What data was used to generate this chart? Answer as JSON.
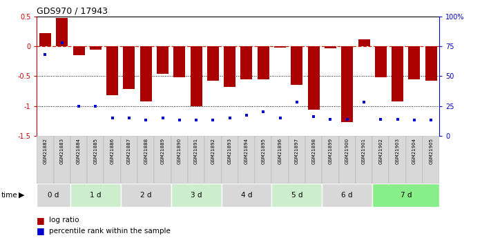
{
  "title": "GDS970 / 17943",
  "samples": [
    "GSM21882",
    "GSM21883",
    "GSM21884",
    "GSM21885",
    "GSM21886",
    "GSM21887",
    "GSM21888",
    "GSM21889",
    "GSM21890",
    "GSM21891",
    "GSM21892",
    "GSM21893",
    "GSM21894",
    "GSM21895",
    "GSM21896",
    "GSM21897",
    "GSM21898",
    "GSM21899",
    "GSM21900",
    "GSM21901",
    "GSM21902",
    "GSM21903",
    "GSM21904",
    "GSM21905"
  ],
  "log_ratio": [
    0.22,
    0.48,
    -0.15,
    -0.05,
    -0.82,
    -0.72,
    -0.93,
    -0.46,
    -0.52,
    -1.0,
    -0.58,
    -0.68,
    -0.55,
    -0.55,
    -0.02,
    -0.65,
    -1.06,
    -0.03,
    -1.27,
    0.12,
    -0.52,
    -0.93,
    -0.55,
    -0.58
  ],
  "percentile": [
    68,
    78,
    25,
    25,
    15,
    15,
    13,
    15,
    13,
    13,
    13,
    15,
    17,
    20,
    15,
    28,
    16,
    14,
    14,
    28,
    14,
    14,
    13,
    13
  ],
  "groups": [
    {
      "label": "0 d",
      "start": 0,
      "end": 2,
      "color": "#d8d8d8"
    },
    {
      "label": "1 d",
      "start": 2,
      "end": 5,
      "color": "#cceecc"
    },
    {
      "label": "2 d",
      "start": 5,
      "end": 8,
      "color": "#d8d8d8"
    },
    {
      "label": "3 d",
      "start": 8,
      "end": 11,
      "color": "#cceecc"
    },
    {
      "label": "4 d",
      "start": 11,
      "end": 14,
      "color": "#d8d8d8"
    },
    {
      "label": "5 d",
      "start": 14,
      "end": 17,
      "color": "#cceecc"
    },
    {
      "label": "6 d",
      "start": 17,
      "end": 20,
      "color": "#d8d8d8"
    },
    {
      "label": "7 d",
      "start": 20,
      "end": 24,
      "color": "#88ee88"
    }
  ],
  "bar_color": "#aa0000",
  "dot_color": "#0000cc",
  "ylim": [
    -1.5,
    0.5
  ],
  "y2lim": [
    0,
    100
  ],
  "yticks": [
    -1.5,
    -1.0,
    -0.5,
    0.0,
    0.5
  ],
  "ytick_labels": [
    "-1.5",
    "-1",
    "-0.5",
    "0",
    "0.5"
  ],
  "y2ticks": [
    0,
    25,
    50,
    75,
    100
  ],
  "y2ticklabels": [
    "0",
    "25",
    "50",
    "75",
    "100%"
  ],
  "legend_log_ratio": "log ratio",
  "legend_percentile": "percentile rank within the sample"
}
